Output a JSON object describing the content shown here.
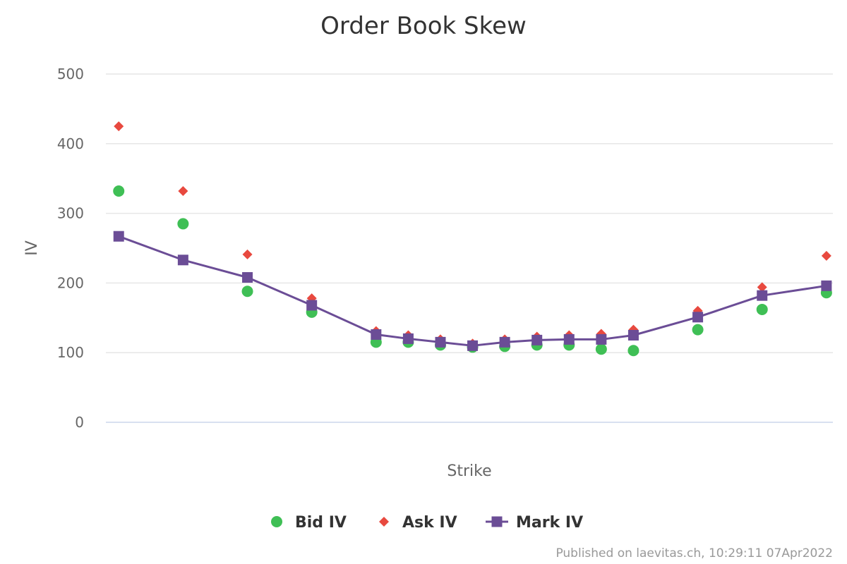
{
  "chart_data": {
    "type": "line",
    "title": "Order Book Skew",
    "xlabel": "Strike",
    "ylabel": "IV",
    "ylim": [
      0,
      500
    ],
    "yticks": [
      0,
      100,
      200,
      300,
      400,
      500
    ],
    "grid": true,
    "legend_position": "bottom-center",
    "x": [
      1,
      2,
      3,
      4,
      5,
      5.5,
      6,
      6.5,
      7,
      7.5,
      8,
      8.5,
      9,
      10,
      11,
      12
    ],
    "series": [
      {
        "name": "Bid IV",
        "marker": "circle",
        "line": false,
        "color": "#3fbf55",
        "values": [
          332,
          285,
          188,
          158,
          115,
          115,
          111,
          108,
          109,
          111,
          111,
          105,
          103,
          133,
          162,
          186
        ]
      },
      {
        "name": "Ask IV",
        "marker": "diamond",
        "line": false,
        "color": "#e8493f",
        "values": [
          425,
          332,
          241,
          178,
          131,
          125,
          119,
          113,
          119,
          123,
          125,
          127,
          133,
          160,
          194,
          239
        ]
      },
      {
        "name": "Mark IV",
        "marker": "square",
        "line": true,
        "color": "#6b4d96",
        "values": [
          267,
          233,
          208,
          168,
          126,
          120,
          115,
          110,
          115,
          118,
          119,
          119,
          125,
          151,
          182,
          196
        ]
      }
    ]
  },
  "credits": "Published on laevitas.ch, 10:29:11 07Apr2022"
}
